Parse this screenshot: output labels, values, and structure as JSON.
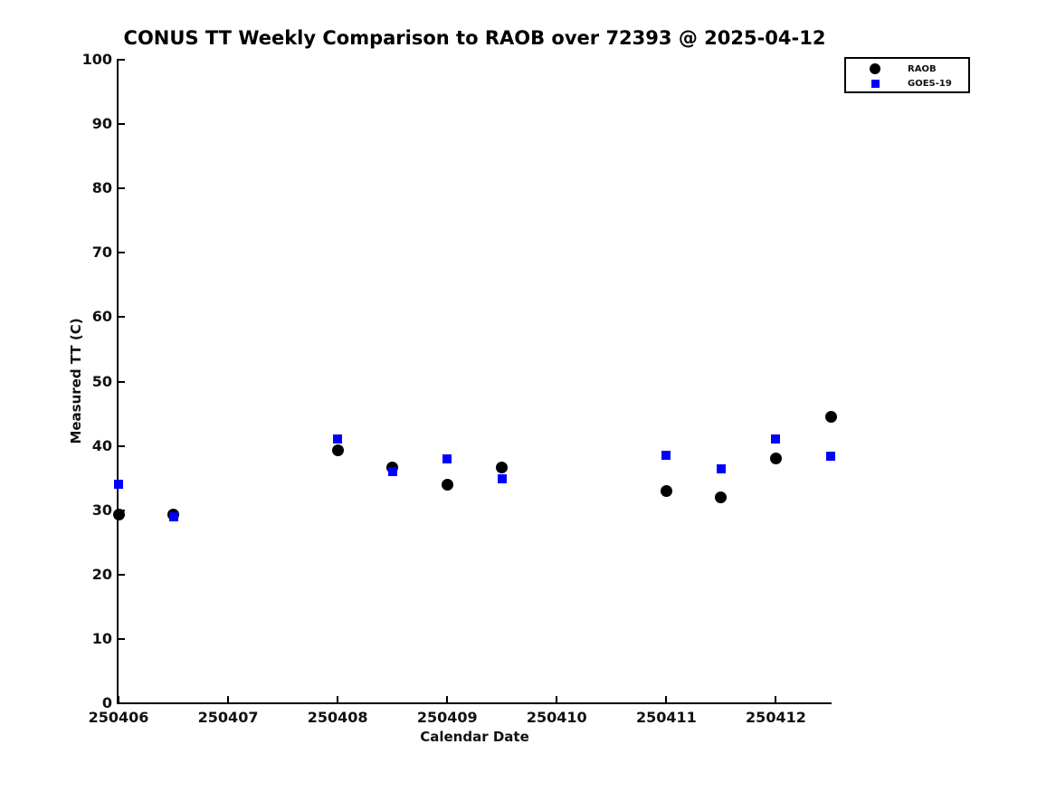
{
  "chart_data": {
    "type": "scatter",
    "title": "CONUS TT Weekly Comparison to RAOB over 72393 @ 2025-04-12",
    "xlabel": "Calendar Date",
    "ylabel": "Measured TT (C)",
    "xlim": [
      250406,
      250412.5
    ],
    "ylim": [
      0,
      100
    ],
    "xticks": [
      250406,
      250407,
      250408,
      250409,
      250410,
      250411,
      250412
    ],
    "yticks": [
      0,
      10,
      20,
      30,
      40,
      50,
      60,
      70,
      80,
      90,
      100
    ],
    "grid": false,
    "legend_position": "top-right",
    "x": [
      250406,
      250406.5,
      250408,
      250408.5,
      250409,
      250409.5,
      250411,
      250411.5,
      250412,
      250412.5
    ],
    "series": [
      {
        "name": "RAOB",
        "marker": "circle",
        "color": "#000000",
        "values": [
          29.3,
          29.3,
          39.3,
          36.6,
          34.0,
          36.6,
          33.0,
          32.0,
          38.0,
          44.5
        ]
      },
      {
        "name": "GOES-19",
        "marker": "square",
        "color": "#0000ff",
        "values": [
          34.0,
          29.0,
          41.1,
          36.0,
          38.0,
          34.9,
          38.5,
          36.4,
          41.1,
          38.4
        ]
      }
    ]
  }
}
